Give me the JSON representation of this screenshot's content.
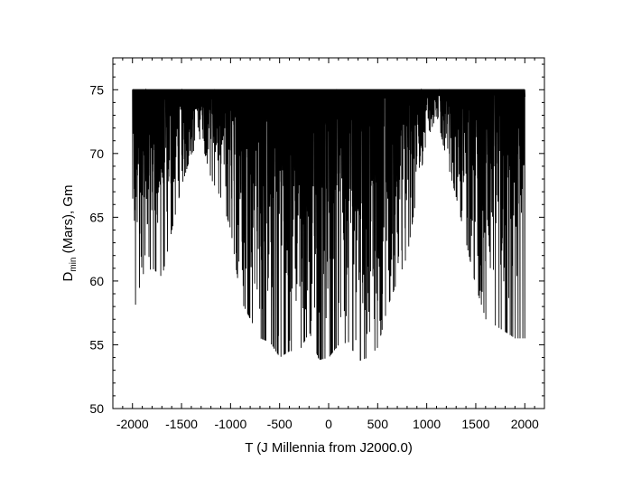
{
  "chart_data": {
    "type": "line",
    "xlabel": "T (J Millennia from J2000.0)",
    "ylabel": {
      "main": "D",
      "subscript": "min",
      "rest": " (Mars), Gm"
    },
    "xlim": [
      -2200,
      2200
    ],
    "ylim": [
      50,
      77.5
    ],
    "x_ticks": [
      -2000,
      -1500,
      -1000,
      -500,
      0,
      500,
      1000,
      1500,
      2000
    ],
    "y_ticks": [
      50,
      55,
      60,
      65,
      70,
      75
    ],
    "x_tick_labels": [
      "-2000",
      "-1500",
      "-1000",
      "-500",
      "0",
      "500",
      "1000",
      "1500",
      "2000"
    ],
    "y_tick_labels": [
      "50",
      "55",
      "60",
      "65",
      "70",
      "75"
    ],
    "grid": false,
    "legend": "none",
    "line_color": "#000000",
    "series": [
      {
        "x_range": [
          -2000,
          2000
        ],
        "cap": 75,
        "min_envelope": {
          "x": [
            -2000,
            -1900,
            -1800,
            -1700,
            -1600,
            -1500,
            -1400,
            -1300,
            -1200,
            -1100,
            -1000,
            -900,
            -800,
            -700,
            -600,
            -500,
            -400,
            -300,
            -200,
            -100,
            0,
            100,
            200,
            300,
            400,
            500,
            600,
            700,
            800,
            900,
            1000,
            1100,
            1200,
            1300,
            1400,
            1500,
            1600,
            1700,
            1800,
            1900,
            2000
          ],
          "y": [
            57.2,
            60.5,
            61.0,
            60.3,
            64.0,
            67.5,
            70.0,
            71.0,
            68.0,
            66.5,
            64.0,
            58.5,
            57.0,
            55.5,
            55.2,
            54.0,
            54.5,
            54.5,
            56.0,
            53.8,
            54.0,
            55.0,
            55.2,
            53.7,
            54.0,
            54.8,
            58.0,
            60.0,
            62.0,
            67.0,
            71.0,
            73.0,
            69.5,
            66.5,
            63.0,
            59.5,
            57.0,
            56.5,
            56.0,
            55.5,
            55.5
          ]
        }
      }
    ]
  }
}
